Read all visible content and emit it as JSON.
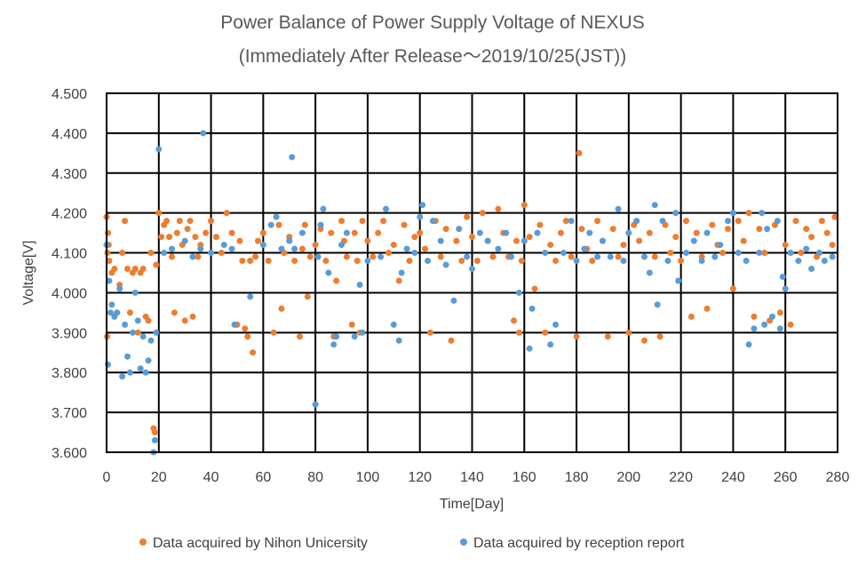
{
  "chart_data": {
    "type": "scatter",
    "title_line1": "Power Balance of Power Supply Voltage of NEXUS",
    "title_line2": "(Immediately After Release～2019/10/25(JST))",
    "xlabel": "Time[Day]",
    "ylabel": "Voltage[V]",
    "xlim": [
      0,
      280
    ],
    "ylim": [
      3.6,
      4.5
    ],
    "x_ticks": [
      "0",
      "20",
      "40",
      "60",
      "80",
      "100",
      "120",
      "140",
      "160",
      "180",
      "200",
      "220",
      "240",
      "260",
      "280"
    ],
    "y_ticks": [
      "3.600",
      "3.700",
      "3.800",
      "3.900",
      "4.000",
      "4.100",
      "4.200",
      "4.300",
      "4.400",
      "4.500"
    ],
    "grid": true,
    "legend_position": "bottom",
    "series": [
      {
        "name": "Data acquired by Nihon Unicersity",
        "color": "#ED7D31",
        "points": [
          [
            0,
            4.19
          ],
          [
            0.5,
            4.15
          ],
          [
            1,
            4.08
          ],
          [
            0.3,
            4.1
          ],
          [
            0.8,
            4.12
          ],
          [
            0.2,
            3.89
          ],
          [
            2,
            4.05
          ],
          [
            3,
            4.06
          ],
          [
            4,
            3.95
          ],
          [
            5,
            4.02
          ],
          [
            6,
            4.1
          ],
          [
            7,
            4.18
          ],
          [
            8,
            4.06
          ],
          [
            9,
            3.95
          ],
          [
            10,
            4.05
          ],
          [
            11,
            4.06
          ],
          [
            12,
            3.9
          ],
          [
            13,
            4.05
          ],
          [
            14,
            4.06
          ],
          [
            15,
            3.94
          ],
          [
            16,
            3.93
          ],
          [
            17,
            4.1
          ],
          [
            18,
            3.66
          ],
          [
            18.5,
            3.65
          ],
          [
            19,
            4.07
          ],
          [
            20,
            4.2
          ],
          [
            21,
            4.14
          ],
          [
            22,
            4.17
          ],
          [
            23,
            4.18
          ],
          [
            24,
            4.14
          ],
          [
            25,
            4.09
          ],
          [
            26,
            3.95
          ],
          [
            27,
            4.15
          ],
          [
            28,
            4.18
          ],
          [
            29,
            4.12
          ],
          [
            30,
            3.93
          ],
          [
            31,
            4.16
          ],
          [
            32,
            4.18
          ],
          [
            33,
            3.94
          ],
          [
            34,
            4.14
          ],
          [
            35,
            4.09
          ],
          [
            36,
            4.12
          ],
          [
            38,
            4.15
          ],
          [
            40,
            4.18
          ],
          [
            42,
            4.14
          ],
          [
            44,
            4.1
          ],
          [
            46,
            4.2
          ],
          [
            48,
            4.15
          ],
          [
            50,
            3.92
          ],
          [
            51,
            4.13
          ],
          [
            52,
            4.08
          ],
          [
            53,
            3.91
          ],
          [
            54,
            3.89
          ],
          [
            55,
            4.08
          ],
          [
            56,
            3.85
          ],
          [
            57,
            4.09
          ],
          [
            58,
            4.13
          ],
          [
            60,
            4.15
          ],
          [
            62,
            4.08
          ],
          [
            64,
            3.9
          ],
          [
            66,
            4.17
          ],
          [
            67,
            3.96
          ],
          [
            68,
            4.1
          ],
          [
            70,
            4.14
          ],
          [
            72,
            4.08
          ],
          [
            74,
            3.89
          ],
          [
            75,
            4.11
          ],
          [
            76,
            4.17
          ],
          [
            77,
            3.99
          ],
          [
            78,
            4.09
          ],
          [
            80,
            4.12
          ],
          [
            82,
            4.16
          ],
          [
            84,
            4.08
          ],
          [
            86,
            4.15
          ],
          [
            87,
            3.89
          ],
          [
            88,
            4.03
          ],
          [
            90,
            4.18
          ],
          [
            91,
            4.13
          ],
          [
            92,
            4.09
          ],
          [
            94,
            3.92
          ],
          [
            95,
            4.15
          ],
          [
            96,
            4.08
          ],
          [
            97,
            3.9
          ],
          [
            98,
            4.18
          ],
          [
            100,
            4.13
          ],
          [
            102,
            4.09
          ],
          [
            104,
            4.15
          ],
          [
            106,
            4.18
          ],
          [
            108,
            4.1
          ],
          [
            110,
            4.12
          ],
          [
            112,
            4.03
          ],
          [
            114,
            4.17
          ],
          [
            116,
            4.08
          ],
          [
            118,
            4.14
          ],
          [
            120,
            4.15
          ],
          [
            122,
            4.11
          ],
          [
            124,
            3.9
          ],
          [
            126,
            4.18
          ],
          [
            128,
            4.09
          ],
          [
            130,
            4.16
          ],
          [
            132,
            3.88
          ],
          [
            134,
            4.13
          ],
          [
            136,
            4.08
          ],
          [
            138,
            4.19
          ],
          [
            140,
            4.14
          ],
          [
            142,
            4.08
          ],
          [
            144,
            4.2
          ],
          [
            146,
            4.13
          ],
          [
            148,
            4.09
          ],
          [
            150,
            4.21
          ],
          [
            152,
            4.15
          ],
          [
            154,
            4.09
          ],
          [
            156,
            3.93
          ],
          [
            157,
            4.13
          ],
          [
            158,
            3.9
          ],
          [
            159,
            4.08
          ],
          [
            160,
            4.22
          ],
          [
            162,
            4.14
          ],
          [
            164,
            4.01
          ],
          [
            166,
            4.17
          ],
          [
            168,
            3.9
          ],
          [
            170,
            4.12
          ],
          [
            172,
            4.08
          ],
          [
            174,
            4.15
          ],
          [
            176,
            4.18
          ],
          [
            178,
            4.09
          ],
          [
            180,
            3.89
          ],
          [
            181,
            4.35
          ],
          [
            182,
            4.16
          ],
          [
            184,
            4.11
          ],
          [
            186,
            4.08
          ],
          [
            188,
            4.18
          ],
          [
            190,
            4.13
          ],
          [
            192,
            3.89
          ],
          [
            194,
            4.16
          ],
          [
            196,
            4.09
          ],
          [
            198,
            4.12
          ],
          [
            200,
            3.9
          ],
          [
            202,
            4.17
          ],
          [
            204,
            4.13
          ],
          [
            206,
            3.88
          ],
          [
            208,
            4.15
          ],
          [
            210,
            4.09
          ],
          [
            212,
            3.89
          ],
          [
            214,
            4.17
          ],
          [
            216,
            4.1
          ],
          [
            218,
            4.14
          ],
          [
            220,
            4.08
          ],
          [
            222,
            4.18
          ],
          [
            224,
            3.94
          ],
          [
            226,
            4.15
          ],
          [
            228,
            4.09
          ],
          [
            230,
            3.96
          ],
          [
            232,
            4.17
          ],
          [
            234,
            4.12
          ],
          [
            236,
            4.1
          ],
          [
            238,
            4.16
          ],
          [
            240,
            4.01
          ],
          [
            242,
            4.18
          ],
          [
            244,
            4.13
          ],
          [
            246,
            4.2
          ],
          [
            248,
            3.94
          ],
          [
            250,
            4.16
          ],
          [
            252,
            4.1
          ],
          [
            254,
            3.93
          ],
          [
            256,
            4.17
          ],
          [
            258,
            3.95
          ],
          [
            260,
            4.12
          ],
          [
            262,
            3.92
          ],
          [
            264,
            4.18
          ],
          [
            266,
            4.1
          ],
          [
            268,
            4.16
          ],
          [
            270,
            4.14
          ],
          [
            272,
            4.09
          ],
          [
            274,
            4.18
          ],
          [
            276,
            4.15
          ],
          [
            278,
            4.12
          ],
          [
            279,
            4.19
          ]
        ]
      },
      {
        "name": "Data acquired by reception report",
        "color": "#5B9BD5",
        "points": [
          [
            0,
            4.12
          ],
          [
            0.5,
            3.82
          ],
          [
            1,
            4.03
          ],
          [
            1.5,
            3.95
          ],
          [
            2,
            3.97
          ],
          [
            3,
            3.94
          ],
          [
            4,
            3.95
          ],
          [
            5,
            4.01
          ],
          [
            6,
            3.79
          ],
          [
            7,
            3.92
          ],
          [
            8,
            3.84
          ],
          [
            9,
            3.8
          ],
          [
            10,
            3.9
          ],
          [
            11,
            4.0
          ],
          [
            12,
            3.93
          ],
          [
            13,
            3.81
          ],
          [
            14,
            3.89
          ],
          [
            15,
            3.8
          ],
          [
            16,
            3.83
          ],
          [
            17,
            3.88
          ],
          [
            18,
            3.6
          ],
          [
            18.5,
            3.63
          ],
          [
            19,
            3.9
          ],
          [
            20,
            4.36
          ],
          [
            22,
            4.1
          ],
          [
            25,
            4.11
          ],
          [
            30,
            4.13
          ],
          [
            33,
            4.09
          ],
          [
            36,
            4.11
          ],
          [
            37,
            4.4
          ],
          [
            40,
            4.1
          ],
          [
            45,
            4.12
          ],
          [
            48,
            4.11
          ],
          [
            49,
            3.92
          ],
          [
            55,
            3.99
          ],
          [
            60,
            4.12
          ],
          [
            63,
            4.17
          ],
          [
            65,
            4.19
          ],
          [
            67,
            4.11
          ],
          [
            70,
            4.13
          ],
          [
            71,
            4.34
          ],
          [
            72,
            4.11
          ],
          [
            75,
            4.15
          ],
          [
            80,
            3.72
          ],
          [
            81,
            4.09
          ],
          [
            82,
            4.17
          ],
          [
            83,
            4.21
          ],
          [
            85,
            4.05
          ],
          [
            87,
            3.87
          ],
          [
            88,
            3.89
          ],
          [
            90,
            4.12
          ],
          [
            92,
            4.15
          ],
          [
            95,
            3.89
          ],
          [
            97,
            4.02
          ],
          [
            98,
            3.9
          ],
          [
            100,
            4.08
          ],
          [
            105,
            4.09
          ],
          [
            107,
            4.21
          ],
          [
            110,
            3.92
          ],
          [
            112,
            3.88
          ],
          [
            113,
            4.05
          ],
          [
            115,
            4.11
          ],
          [
            118,
            4.1
          ],
          [
            120,
            4.19
          ],
          [
            121,
            4.22
          ],
          [
            123,
            4.08
          ],
          [
            125,
            4.18
          ],
          [
            128,
            4.13
          ],
          [
            130,
            4.07
          ],
          [
            133,
            3.98
          ],
          [
            135,
            4.16
          ],
          [
            138,
            4.09
          ],
          [
            140,
            4.06
          ],
          [
            143,
            4.15
          ],
          [
            146,
            4.13
          ],
          [
            150,
            4.11
          ],
          [
            153,
            4.15
          ],
          [
            155,
            4.09
          ],
          [
            158,
            4.0
          ],
          [
            160,
            4.13
          ],
          [
            162,
            3.86
          ],
          [
            163,
            3.96
          ],
          [
            165,
            4.15
          ],
          [
            168,
            4.1
          ],
          [
            170,
            3.87
          ],
          [
            172,
            3.92
          ],
          [
            175,
            4.1
          ],
          [
            178,
            4.18
          ],
          [
            180,
            4.08
          ],
          [
            183,
            4.11
          ],
          [
            185,
            4.15
          ],
          [
            188,
            4.09
          ],
          [
            190,
            4.13
          ],
          [
            193,
            4.09
          ],
          [
            196,
            4.21
          ],
          [
            198,
            4.08
          ],
          [
            200,
            4.15
          ],
          [
            203,
            4.18
          ],
          [
            206,
            4.09
          ],
          [
            208,
            4.05
          ],
          [
            210,
            4.22
          ],
          [
            211,
            3.97
          ],
          [
            213,
            4.18
          ],
          [
            215,
            4.08
          ],
          [
            218,
            4.2
          ],
          [
            219,
            4.03
          ],
          [
            222,
            4.1
          ],
          [
            225,
            4.13
          ],
          [
            228,
            4.08
          ],
          [
            230,
            4.15
          ],
          [
            233,
            4.09
          ],
          [
            235,
            4.12
          ],
          [
            238,
            4.18
          ],
          [
            240,
            4.2
          ],
          [
            242,
            4.1
          ],
          [
            245,
            4.08
          ],
          [
            246,
            3.87
          ],
          [
            248,
            3.91
          ],
          [
            250,
            4.1
          ],
          [
            251,
            4.2
          ],
          [
            252,
            3.92
          ],
          [
            253,
            4.16
          ],
          [
            255,
            3.94
          ],
          [
            257,
            4.18
          ],
          [
            258,
            3.91
          ],
          [
            259,
            4.04
          ],
          [
            260,
            4.01
          ],
          [
            262,
            4.1
          ],
          [
            265,
            4.08
          ],
          [
            268,
            4.11
          ],
          [
            270,
            4.06
          ],
          [
            273,
            4.1
          ],
          [
            275,
            4.08
          ],
          [
            278,
            4.09
          ]
        ]
      }
    ]
  }
}
